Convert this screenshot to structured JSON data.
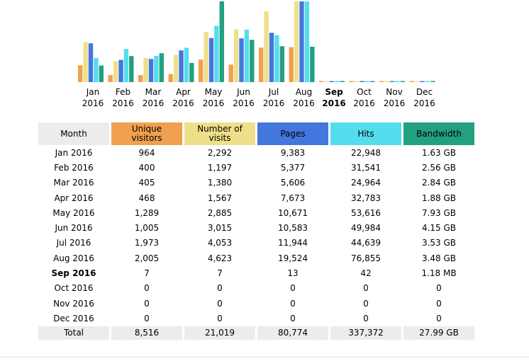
{
  "colors": {
    "visitors": "#f0a050",
    "visits": "#eee08a",
    "pages": "#4477dd",
    "hits": "#55ddee",
    "bandwidth": "#22a080",
    "header_month": "#ececec",
    "total_row": "#ececec"
  },
  "chart_data": {
    "type": "bar",
    "categories": [
      "Jan 2016",
      "Feb 2016",
      "Mar 2016",
      "Apr 2016",
      "May 2016",
      "Jun 2016",
      "Jul 2016",
      "Aug 2016",
      "Sep 2016",
      "Oct 2016",
      "Nov 2016",
      "Dec 2016"
    ],
    "current_category": "Sep 2016",
    "series": [
      {
        "name": "Unique visitors",
        "values": [
          964,
          400,
          405,
          468,
          1289,
          1005,
          1973,
          2005,
          7,
          0,
          0,
          0
        ]
      },
      {
        "name": "Number of visits",
        "values": [
          2292,
          1197,
          1380,
          1567,
          2885,
          3015,
          4053,
          4623,
          7,
          0,
          0,
          0
        ]
      },
      {
        "name": "Pages",
        "values": [
          9383,
          5377,
          5606,
          7673,
          10671,
          10583,
          11944,
          19524,
          13,
          0,
          0,
          0
        ]
      },
      {
        "name": "Hits",
        "values": [
          22948,
          31541,
          24964,
          32783,
          53616,
          49984,
          44639,
          76855,
          42,
          0,
          0,
          0
        ]
      },
      {
        "name": "Bandwidth",
        "values": [
          1.63,
          2.56,
          2.84,
          1.88,
          7.93,
          4.15,
          3.53,
          3.48,
          0.00118,
          0,
          0,
          0
        ]
      }
    ]
  },
  "table": {
    "headers": {
      "month": "Month",
      "visitors": [
        "Unique",
        "visitors"
      ],
      "visits": [
        "Number of",
        "visits"
      ],
      "pages": "Pages",
      "hits": "Hits",
      "bandwidth": "Bandwidth"
    },
    "rows": [
      {
        "month": "Jan 2016",
        "visitors": "964",
        "visits": "2,292",
        "pages": "9,383",
        "hits": "22,948",
        "bandwidth": "1.63 GB"
      },
      {
        "month": "Feb 2016",
        "visitors": "400",
        "visits": "1,197",
        "pages": "5,377",
        "hits": "31,541",
        "bandwidth": "2.56 GB"
      },
      {
        "month": "Mar 2016",
        "visitors": "405",
        "visits": "1,380",
        "pages": "5,606",
        "hits": "24,964",
        "bandwidth": "2.84 GB"
      },
      {
        "month": "Apr 2016",
        "visitors": "468",
        "visits": "1,567",
        "pages": "7,673",
        "hits": "32,783",
        "bandwidth": "1.88 GB"
      },
      {
        "month": "May 2016",
        "visitors": "1,289",
        "visits": "2,885",
        "pages": "10,671",
        "hits": "53,616",
        "bandwidth": "7.93 GB"
      },
      {
        "month": "Jun 2016",
        "visitors": "1,005",
        "visits": "3,015",
        "pages": "10,583",
        "hits": "49,984",
        "bandwidth": "4.15 GB"
      },
      {
        "month": "Jul 2016",
        "visitors": "1,973",
        "visits": "4,053",
        "pages": "11,944",
        "hits": "44,639",
        "bandwidth": "3.53 GB"
      },
      {
        "month": "Aug 2016",
        "visitors": "2,005",
        "visits": "4,623",
        "pages": "19,524",
        "hits": "76,855",
        "bandwidth": "3.48 GB"
      },
      {
        "month": "Sep 2016",
        "visitors": "7",
        "visits": "7",
        "pages": "13",
        "hits": "42",
        "bandwidth": "1.18 MB",
        "current": true
      },
      {
        "month": "Oct 2016",
        "visitors": "0",
        "visits": "0",
        "pages": "0",
        "hits": "0",
        "bandwidth": "0"
      },
      {
        "month": "Nov 2016",
        "visitors": "0",
        "visits": "0",
        "pages": "0",
        "hits": "0",
        "bandwidth": "0"
      },
      {
        "month": "Dec 2016",
        "visitors": "0",
        "visits": "0",
        "pages": "0",
        "hits": "0",
        "bandwidth": "0"
      }
    ],
    "total": {
      "month": "Total",
      "visitors": "8,516",
      "visits": "21,019",
      "pages": "80,774",
      "hits": "337,372",
      "bandwidth": "27.99 GB"
    }
  }
}
